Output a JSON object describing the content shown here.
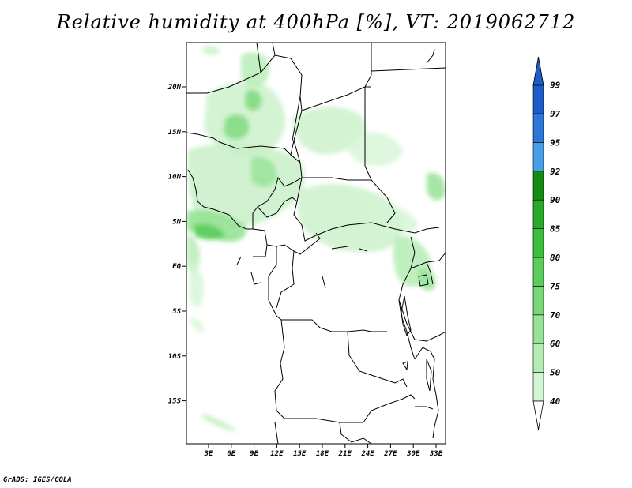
{
  "title": "Relative humidity at 400hPa [%], VT: 2019062712",
  "credit": "GrADS: IGES/COLA",
  "map": {
    "lon_labels": [
      "3E",
      "6E",
      "9E",
      "12E",
      "15E",
      "18E",
      "21E",
      "24E",
      "27E",
      "30E",
      "33E"
    ],
    "lat_labels": [
      "20N",
      "15N",
      "10N",
      "5N",
      "EQ",
      "5S",
      "10S",
      "15S"
    ]
  },
  "colorbar": {
    "labels": [
      "40",
      "50",
      "60",
      "70",
      "75",
      "80",
      "85",
      "90",
      "92",
      "95",
      "97",
      "99"
    ],
    "colors": [
      "#f0fff0",
      "#d4f5d4",
      "#b4ecb4",
      "#96e296",
      "#78d878",
      "#5acd5a",
      "#3cc03c",
      "#28aa28",
      "#148c14",
      "#4a9ee8",
      "#2b78d8",
      "#1e5cc8"
    ]
  }
}
